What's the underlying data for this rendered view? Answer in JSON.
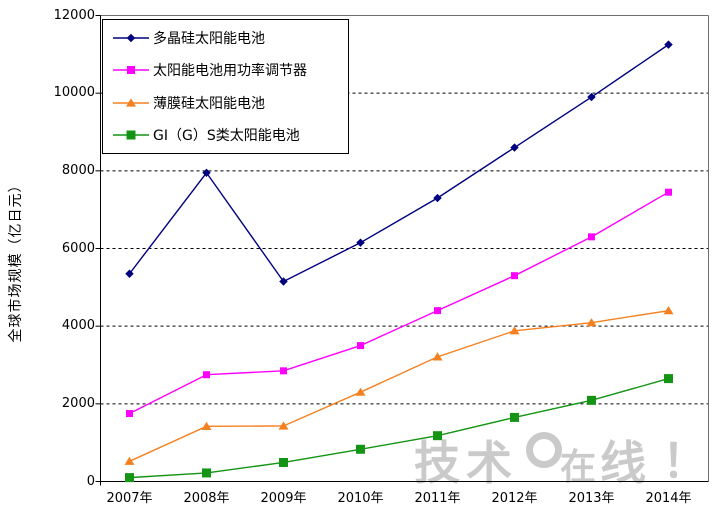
{
  "page": {
    "background": "#FFFFFF"
  },
  "watermark": {
    "text_left": "技术",
    "text_mid": "在",
    "text_right": "线",
    "exclaim": "！",
    "color": "#CACACA"
  },
  "chart_data": {
    "type": "line",
    "title": "",
    "xlabel": "",
    "ylabel": "全球市场规模（亿日元）",
    "ylim": [
      0,
      12000
    ],
    "ytick_interval": 2000,
    "yticks": [
      0,
      2000,
      4000,
      6000,
      8000,
      10000,
      12000
    ],
    "grid": "horizontal-dashed",
    "legend_position": "top-left-inside",
    "categories": [
      "2007年",
      "2008年",
      "2009年",
      "2010年",
      "2011年",
      "2012年",
      "2013年",
      "2014年"
    ],
    "series": [
      {
        "name": "多晶硅太阳能电池",
        "marker": "diamond",
        "color": "#000080",
        "values": [
          5350,
          7950,
          5150,
          6150,
          7300,
          8600,
          9900,
          11250
        ]
      },
      {
        "name": "太阳能电池用功率调节器",
        "marker": "square",
        "color": "#FF00FF",
        "values": [
          1750,
          2750,
          2850,
          3500,
          4400,
          5300,
          6300,
          7450
        ]
      },
      {
        "name": "薄膜硅太阳能电池",
        "marker": "triangle",
        "color": "#F58020",
        "values": [
          520,
          1420,
          1430,
          2300,
          3210,
          3880,
          4090,
          4400
        ]
      },
      {
        "name": "GI（G）S类太阳能电池",
        "marker": "square-large",
        "color": "#149414",
        "values": [
          100,
          220,
          490,
          830,
          1180,
          1650,
          2090,
          2650
        ]
      }
    ]
  }
}
